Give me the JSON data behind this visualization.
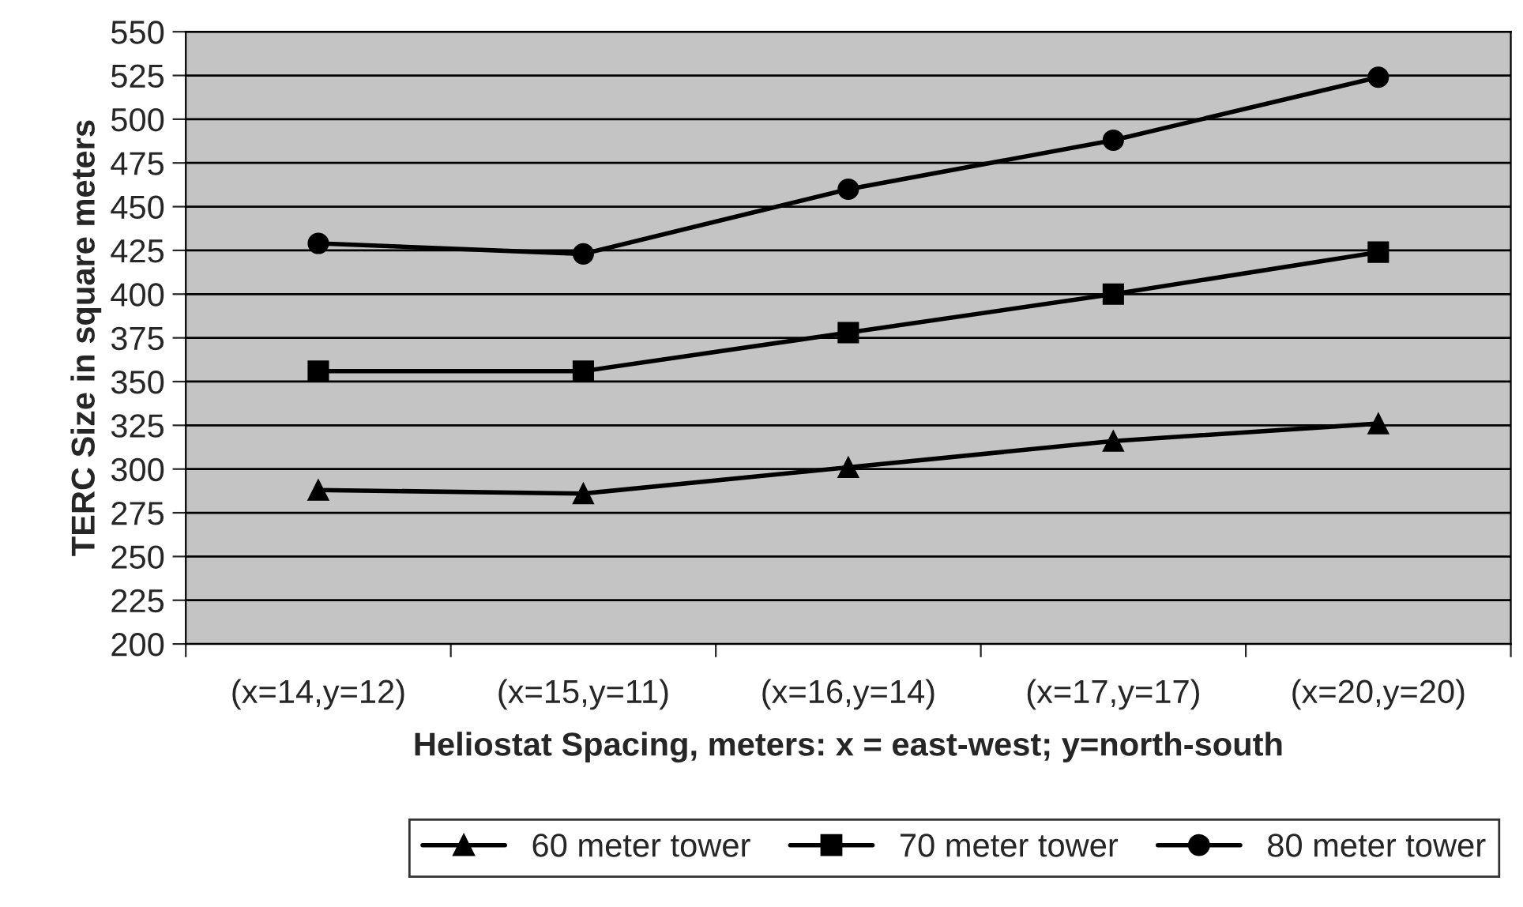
{
  "chart_data": {
    "type": "line",
    "categories": [
      "(x=14,y=12)",
      "(x=15,y=11)",
      "(x=16,y=14)",
      "(x=17,y=17)",
      "(x=20,y=20)"
    ],
    "series": [
      {
        "name": "60 meter tower",
        "color": "#000000",
        "marker": "triangle",
        "values": [
          288,
          286,
          301,
          316,
          326
        ]
      },
      {
        "name": "70 meter tower",
        "color": "#000000",
        "marker": "square",
        "values": [
          356,
          356,
          378,
          400,
          424
        ]
      },
      {
        "name": "80 meter tower",
        "color": "#000000",
        "marker": "circle",
        "values": [
          429,
          423,
          460,
          488,
          524
        ]
      }
    ],
    "xlabel": "Heliostat Spacing, meters: x = east-west; y=north-south",
    "ylabel": "TERC Size in square meters",
    "ylim": [
      200,
      550
    ],
    "yticks": [
      200,
      225,
      250,
      275,
      300,
      325,
      350,
      375,
      400,
      425,
      450,
      475,
      500,
      525,
      550
    ],
    "grid": "y",
    "legend": "bottom",
    "line_style": "solid"
  }
}
